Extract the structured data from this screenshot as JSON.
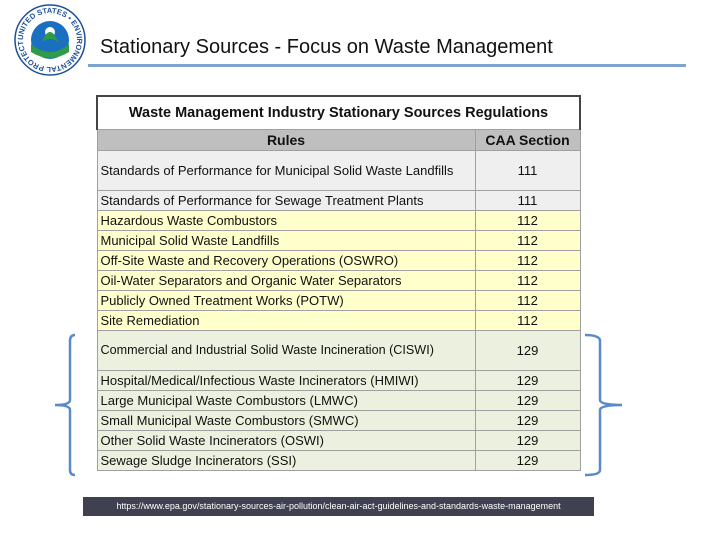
{
  "header": {
    "title": "Stationary Sources - Focus on Waste Management"
  },
  "logo": {
    "text": "UNITED STATES • ENVIRONMENTAL PROTECTION AGENCY"
  },
  "table": {
    "title": "Waste Management Industry Stationary Sources Regulations",
    "columns": [
      "Rules",
      "CAA Section"
    ],
    "rows": [
      [
        "Standards of Performance for Municipal Solid Waste Landfills",
        111
      ],
      [
        "Standards of Performance for Sewage Treatment Plants",
        111
      ],
      [
        "Hazardous Waste Combustors",
        112
      ],
      [
        "Municipal Solid Waste Landfills",
        112
      ],
      [
        "Off-Site Waste and Recovery Operations (OSWRO)",
        112
      ],
      [
        "Oil-Water Separators and Organic Water Separators",
        112
      ],
      [
        "Publicly Owned Treatment Works (POTW)",
        112
      ],
      [
        "Site Remediation",
        112
      ],
      [
        "Commercial and Industrial Solid Waste Incineration (CISWI)",
        129
      ],
      [
        "Hospital/Medical/Infectious Waste Incinerators (HMIWI)",
        129
      ],
      [
        "Large Municipal Waste Combustors (LMWC)",
        129
      ],
      [
        "Small Municipal Waste Combustors (SMWC)",
        129
      ],
      [
        "Other Solid Waste Incinerators (OSWI)",
        129
      ],
      [
        "Sewage Sludge Incinerators (SSI)",
        129
      ]
    ]
  },
  "footer": {
    "url": "https://www.epa.gov/stationary-sources-air-pollution/clean-air-act-guidelines-and-standards-waste-management"
  }
}
